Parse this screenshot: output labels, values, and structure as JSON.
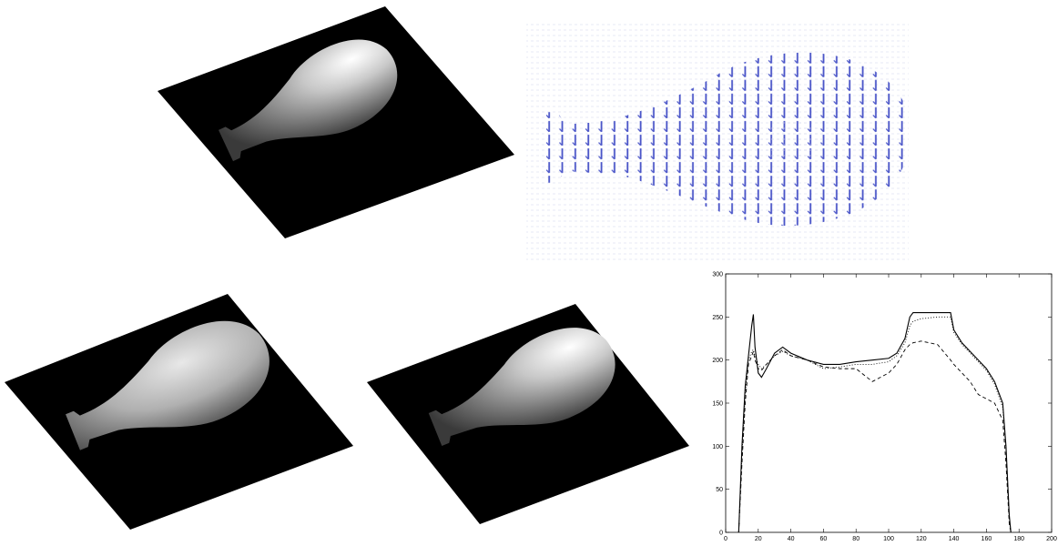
{
  "chart_data": {
    "type": "line",
    "x": [
      8,
      10,
      12,
      14,
      16,
      17,
      18,
      20,
      22,
      25,
      30,
      35,
      40,
      50,
      60,
      70,
      80,
      90,
      100,
      105,
      110,
      113,
      115,
      120,
      130,
      138,
      140,
      145,
      150,
      155,
      160,
      165,
      170,
      172,
      174,
      175
    ],
    "series": [
      {
        "color": "#000000",
        "style": "solid",
        "values": [
          0,
          100,
          170,
          205,
          240,
          253,
          215,
          185,
          180,
          190,
          208,
          215,
          208,
          200,
          195,
          195,
          198,
          200,
          202,
          208,
          225,
          250,
          255,
          255,
          255,
          255,
          235,
          220,
          210,
          200,
          190,
          175,
          150,
          100,
          20,
          0
        ]
      },
      {
        "color": "#000000",
        "style": "dotted",
        "values": [
          0,
          90,
          160,
          200,
          210,
          212,
          205,
          195,
          190,
          195,
          205,
          210,
          205,
          200,
          190,
          192,
          195,
          195,
          198,
          205,
          220,
          240,
          245,
          248,
          250,
          250,
          232,
          218,
          208,
          198,
          188,
          172,
          145,
          95,
          15,
          0
        ]
      },
      {
        "color": "#000000",
        "style": "dashed",
        "values": [
          0,
          80,
          150,
          195,
          205,
          210,
          200,
          190,
          188,
          195,
          205,
          212,
          205,
          200,
          192,
          190,
          190,
          175,
          185,
          195,
          212,
          218,
          220,
          222,
          218,
          200,
          195,
          185,
          175,
          160,
          155,
          150,
          130,
          80,
          10,
          0
        ]
      }
    ],
    "xlim": [
      0,
      200
    ],
    "xticks": [
      0,
      20,
      40,
      60,
      80,
      100,
      120,
      140,
      160,
      180,
      200
    ],
    "ylim": [
      0,
      300
    ],
    "yticks": [
      0,
      50,
      100,
      150,
      200,
      250,
      300
    ]
  }
}
